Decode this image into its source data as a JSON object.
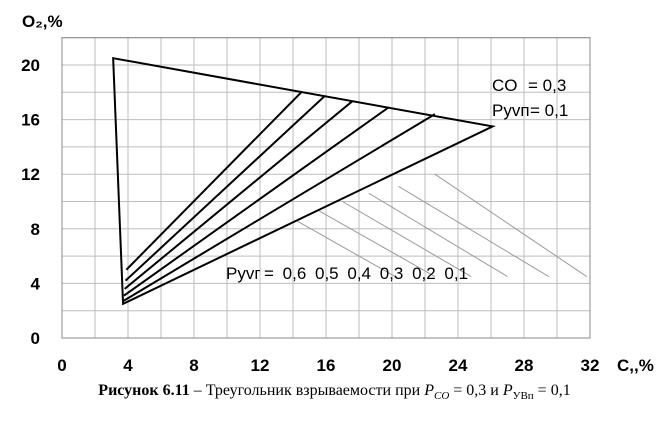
{
  "chart_data": {
    "type": "line",
    "xlabel": "C,,%",
    "ylabel": "O₂,%",
    "xlim": [
      0,
      32
    ],
    "ylim": [
      0,
      22
    ],
    "x_ticks": [
      0,
      4,
      8,
      12,
      16,
      20,
      24,
      28,
      32
    ],
    "y_ticks": [
      0,
      4,
      8,
      12,
      16,
      20
    ],
    "grid": true,
    "triangle": {
      "vertices": [
        {
          "x": 3.1,
          "y": 20.5
        },
        {
          "x": 26.1,
          "y": 15.5
        },
        {
          "x": 3.7,
          "y": 2.5
        }
      ]
    },
    "series": [
      {
        "from": {
          "x": 3.9,
          "y": 5.0
        },
        "to": {
          "x": 14.5,
          "y": 18.0
        }
      },
      {
        "from": {
          "x": 3.85,
          "y": 4.2
        },
        "to": {
          "x": 15.9,
          "y": 17.7
        }
      },
      {
        "from": {
          "x": 3.8,
          "y": 3.6
        },
        "to": {
          "x": 17.6,
          "y": 17.35
        }
      },
      {
        "from": {
          "x": 3.75,
          "y": 3.1
        },
        "to": {
          "x": 19.8,
          "y": 16.9
        }
      },
      {
        "from": {
          "x": 3.7,
          "y": 2.7
        },
        "to": {
          "x": 22.6,
          "y": 16.4
        }
      }
    ],
    "annotations": {
      "co_label": "CO",
      "co_value": "= 0,3",
      "pyvn_label": "Pуᴠп",
      "pyvn_value": "= 0,1",
      "pyvg_label": "Pуᴠг",
      "pyvg_values": "= 0,6 0,5 0,4 0,3 0,2 0,1"
    },
    "leaders": [
      {
        "from": {
          "x": 14.2,
          "y": 8.6
        },
        "to": {
          "x": 20.2,
          "y": 4.5
        }
      },
      {
        "from": {
          "x": 15.6,
          "y": 9.3
        },
        "to": {
          "x": 22.6,
          "y": 4.5
        }
      },
      {
        "from": {
          "x": 17.0,
          "y": 10.0
        },
        "to": {
          "x": 24.8,
          "y": 4.5
        }
      },
      {
        "from": {
          "x": 18.6,
          "y": 10.6
        },
        "to": {
          "x": 27.0,
          "y": 4.5
        }
      },
      {
        "from": {
          "x": 20.4,
          "y": 11.1
        },
        "to": {
          "x": 29.5,
          "y": 4.5
        }
      },
      {
        "from": {
          "x": 22.6,
          "y": 12.0
        },
        "to": {
          "x": 31.8,
          "y": 4.5
        }
      }
    ]
  },
  "caption": {
    "bold": "Рисунок 6.11",
    "text": " – Треугольник взрываемости при ",
    "p_co": "P",
    "p_co_sub": "CO",
    "eq1": " = 0,3 и ",
    "p_uvn": "P",
    "p_uvn_sub": "УВп",
    "eq2": " = 0,1"
  }
}
